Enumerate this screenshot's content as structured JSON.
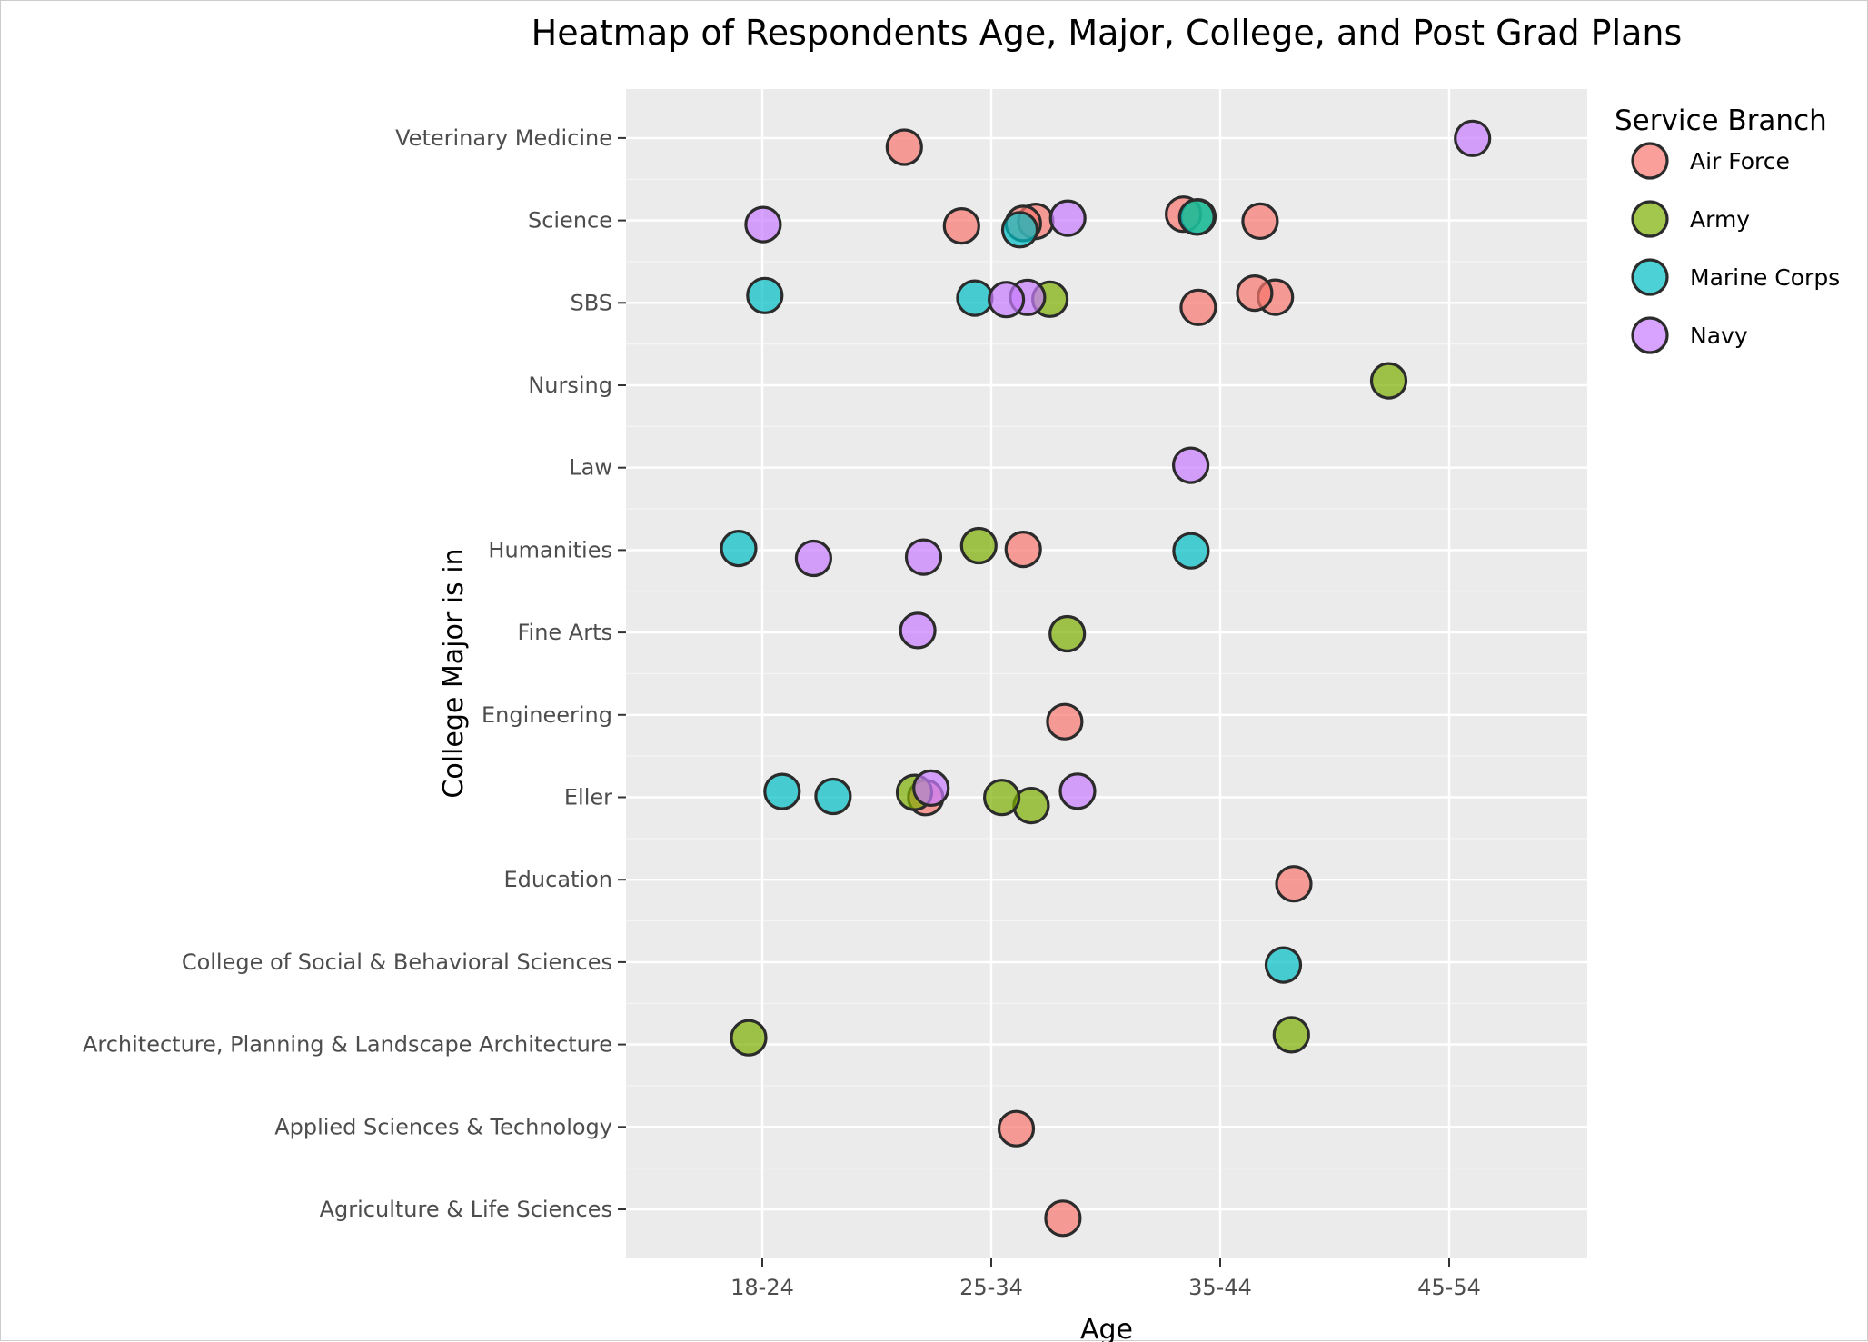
{
  "chart_data": {
    "type": "scatter",
    "title": "Heatmap of Respondents Age, Major, College, and Post Grad Plans",
    "xlabel": "Age",
    "ylabel": "College Major is in",
    "x_categories": [
      "18-24",
      "25-34",
      "35-44",
      "45-54"
    ],
    "y_categories": [
      "Agriculture & Life Sciences",
      "Applied Sciences & Technology",
      "Architecture, Planning & Landscape Architecture",
      "College of Social & Behavioral Sciences",
      "Education",
      "Eller",
      "Engineering",
      "Fine Arts",
      "Humanities",
      "Law",
      "Nursing",
      "SBS",
      "Science",
      "Veterinary Medicine"
    ],
    "grid": true,
    "legend": {
      "title": "Service Branch",
      "placement": "right"
    },
    "series": [
      {
        "name": "Air Force",
        "color": "#F8766D",
        "points": [
          [
            "25-34",
            "Veterinary Medicine"
          ],
          [
            "35-44",
            "Science"
          ],
          [
            "35-44",
            "Science"
          ],
          [
            "25-34",
            "Science"
          ],
          [
            "25-34",
            "Science"
          ],
          [
            "25-34",
            "Science"
          ],
          [
            "35-44",
            "SBS"
          ],
          [
            "35-44",
            "SBS"
          ],
          [
            "35-44",
            "SBS"
          ],
          [
            "25-34",
            "Humanities"
          ],
          [
            "25-34",
            "Engineering"
          ],
          [
            "25-34",
            "Eller"
          ],
          [
            "35-44",
            "Education"
          ],
          [
            "25-34",
            "Applied Sciences & Technology"
          ],
          [
            "25-34",
            "Agriculture & Life Sciences"
          ]
        ]
      },
      {
        "name": "Army",
        "color": "#7CAE00",
        "points": [
          [
            "35-44",
            "Science"
          ],
          [
            "25-34",
            "SBS"
          ],
          [
            "45-54",
            "Nursing"
          ],
          [
            "25-34",
            "Humanities"
          ],
          [
            "25-34",
            "Fine Arts"
          ],
          [
            "25-34",
            "Eller"
          ],
          [
            "25-34",
            "Eller"
          ],
          [
            "25-34",
            "Eller"
          ],
          [
            "18-24",
            "Architecture, Planning & Landscape Architecture"
          ],
          [
            "35-44",
            "Architecture, Planning & Landscape Architecture"
          ]
        ]
      },
      {
        "name": "Marine Corps",
        "color": "#00BFC4",
        "points": [
          [
            "35-44",
            "Science"
          ],
          [
            "25-34",
            "Science"
          ],
          [
            "18-24",
            "SBS"
          ],
          [
            "25-34",
            "SBS"
          ],
          [
            "18-24",
            "Humanities"
          ],
          [
            "35-44",
            "Humanities"
          ],
          [
            "18-24",
            "Eller"
          ],
          [
            "18-24",
            "Eller"
          ],
          [
            "35-44",
            "College of Social & Behavioral Sciences"
          ]
        ]
      },
      {
        "name": "Navy",
        "color": "#C77CFF",
        "points": [
          [
            "45-54",
            "Veterinary Medicine"
          ],
          [
            "18-24",
            "Science"
          ],
          [
            "25-34",
            "Science"
          ],
          [
            "25-34",
            "SBS"
          ],
          [
            "25-34",
            "SBS"
          ],
          [
            "35-44",
            "Law"
          ],
          [
            "18-24",
            "Humanities"
          ],
          [
            "25-34",
            "Humanities"
          ],
          [
            "25-34",
            "Fine Arts"
          ],
          [
            "25-34",
            "Eller"
          ],
          [
            "25-34",
            "Eller"
          ]
        ]
      }
    ]
  }
}
